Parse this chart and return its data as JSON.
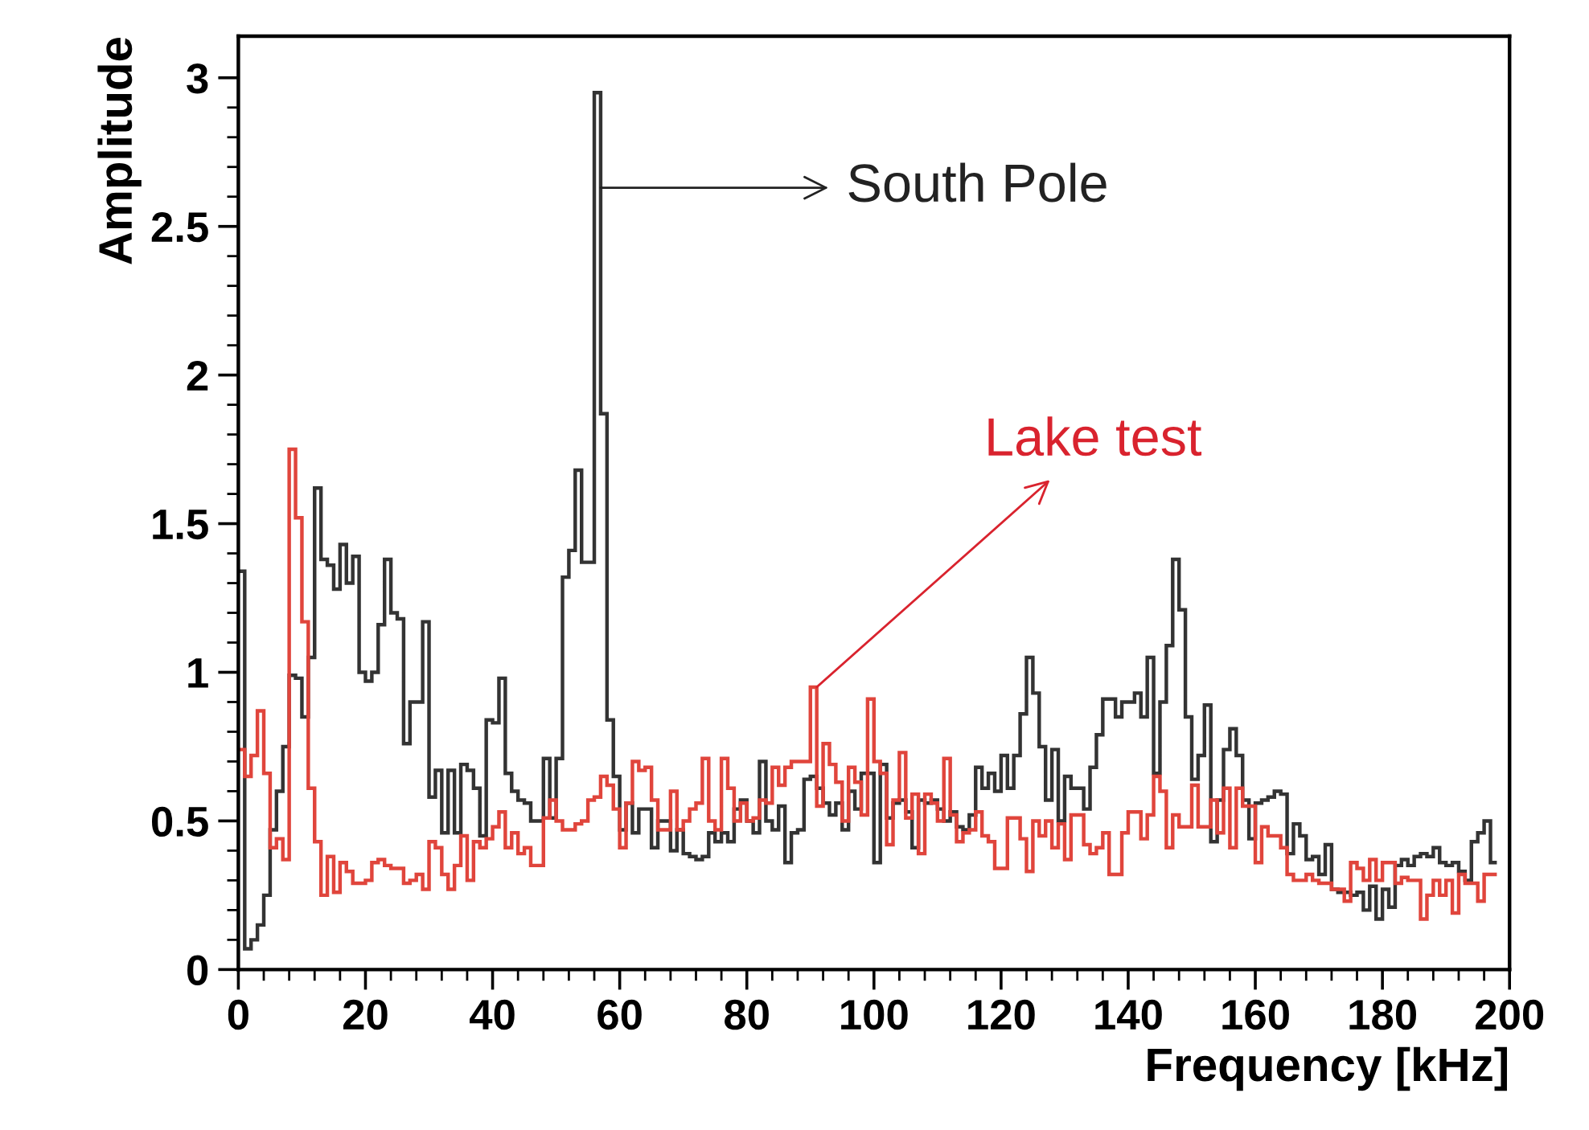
{
  "chart_data": {
    "type": "histogram",
    "xlabel": "Frequency [kHz]",
    "ylabel": "Amplitude",
    "xlim": [
      0,
      200
    ],
    "ylim": [
      0,
      3.14
    ],
    "xticks": [
      0,
      {
        "value": 4,
        "label": null
      },
      {
        "value": 8,
        "label": null
      },
      {
        "value": 12,
        "label": null
      },
      {
        "value": 16,
        "label": null
      },
      20,
      {
        "value": 24,
        "label": null
      },
      {
        "value": 28,
        "label": null
      },
      {
        "value": 32,
        "label": null
      },
      {
        "value": 36,
        "label": null
      },
      40,
      {
        "value": 44,
        "label": null
      },
      {
        "value": 48,
        "label": null
      },
      {
        "value": 52,
        "label": null
      },
      {
        "value": 56,
        "label": null
      },
      60,
      {
        "value": 64,
        "label": null
      },
      {
        "value": 68,
        "label": null
      },
      {
        "value": 72,
        "label": null
      },
      {
        "value": 76,
        "label": null
      },
      80,
      {
        "value": 84,
        "label": null
      },
      {
        "value": 88,
        "label": null
      },
      {
        "value": 92,
        "label": null
      },
      {
        "value": 96,
        "label": null
      },
      100,
      {
        "value": 104,
        "label": null
      },
      {
        "value": 108,
        "label": null
      },
      {
        "value": 112,
        "label": null
      },
      {
        "value": 116,
        "label": null
      },
      120,
      {
        "value": 124,
        "label": null
      },
      {
        "value": 128,
        "label": null
      },
      {
        "value": 132,
        "label": null
      },
      {
        "value": 136,
        "label": null
      },
      140,
      {
        "value": 144,
        "label": null
      },
      {
        "value": 148,
        "label": null
      },
      {
        "value": 152,
        "label": null
      },
      {
        "value": 156,
        "label": null
      },
      160,
      {
        "value": 164,
        "label": null
      },
      {
        "value": 168,
        "label": null
      },
      {
        "value": 172,
        "label": null
      },
      {
        "value": 176,
        "label": null
      },
      180,
      {
        "value": 184,
        "label": null
      },
      {
        "value": 188,
        "label": null
      },
      {
        "value": 192,
        "label": null
      },
      {
        "value": 196,
        "label": null
      },
      200
    ],
    "yticks": [
      0,
      {
        "value": 0.1,
        "label": null
      },
      {
        "value": 0.2,
        "label": null
      },
      {
        "value": 0.3,
        "label": null
      },
      {
        "value": 0.4,
        "label": null
      },
      0.5,
      {
        "value": 0.6,
        "label": null
      },
      {
        "value": 0.7,
        "label": null
      },
      {
        "value": 0.8,
        "label": null
      },
      {
        "value": 0.9,
        "label": null
      },
      1,
      {
        "value": 1.1,
        "label": null
      },
      {
        "value": 1.2,
        "label": null
      },
      {
        "value": 1.3,
        "label": null
      },
      {
        "value": 1.4,
        "label": null
      },
      1.5,
      {
        "value": 1.6,
        "label": null
      },
      {
        "value": 1.7,
        "label": null
      },
      {
        "value": 1.8,
        "label": null
      },
      {
        "value": 1.9,
        "label": null
      },
      2,
      {
        "value": 2.1,
        "label": null
      },
      {
        "value": 2.2,
        "label": null
      },
      {
        "value": 2.3,
        "label": null
      },
      {
        "value": 2.4,
        "label": null
      },
      2.5,
      {
        "value": 2.6,
        "label": null
      },
      {
        "value": 2.7,
        "label": null
      },
      {
        "value": 2.8,
        "label": null
      },
      {
        "value": 2.9,
        "label": null
      },
      3
    ],
    "grid": false,
    "legend": false,
    "bins": [
      0,
      1,
      2,
      3,
      4,
      5,
      6,
      7,
      8,
      9,
      10,
      11,
      12,
      13,
      14,
      15,
      16,
      17,
      18,
      19,
      20,
      21,
      22,
      23,
      24,
      25,
      26,
      27,
      28,
      29,
      30,
      31,
      32,
      33,
      34,
      35,
      36,
      37,
      38,
      39,
      40,
      41,
      42,
      43,
      44,
      45,
      46,
      47,
      48,
      49,
      50,
      51,
      52,
      53,
      54,
      55,
      56,
      57,
      58,
      59,
      60,
      61,
      62,
      63,
      64,
      65,
      66,
      67,
      68,
      69,
      70,
      71,
      72,
      73,
      74,
      75,
      76,
      77,
      78,
      79,
      80,
      81,
      82,
      83,
      84,
      85,
      86,
      87,
      88,
      89,
      90,
      91,
      92,
      93,
      94,
      95,
      96,
      97,
      98,
      99,
      100,
      101,
      102,
      103,
      104,
      105,
      106,
      107,
      108,
      109,
      110,
      111,
      112,
      113,
      114,
      115,
      116,
      117,
      118,
      119,
      120,
      121,
      122,
      123,
      124,
      125,
      126,
      127,
      128,
      129,
      130,
      131,
      132,
      133,
      134,
      135,
      136,
      137,
      138,
      139,
      140,
      141,
      142,
      143,
      144,
      145,
      146,
      147,
      148,
      149,
      150,
      151,
      152,
      153,
      154,
      155,
      156,
      157,
      158,
      159,
      160,
      161,
      162,
      163,
      164,
      165,
      166,
      167,
      168,
      169,
      170,
      171,
      172,
      173,
      174,
      175,
      176,
      177,
      178,
      179,
      180,
      181,
      182,
      183,
      184,
      185,
      186,
      187,
      188,
      189,
      190,
      191,
      192,
      193,
      194,
      195,
      196,
      197,
      198
    ],
    "series": [
      {
        "color": "#333333",
        "values": [
          1.34,
          0.07,
          0.1,
          0.15,
          0.25,
          0.47,
          0.6,
          0.75,
          0.99,
          0.98,
          0.85,
          1.05,
          1.62,
          1.38,
          1.36,
          1.28,
          1.43,
          1.3,
          1.39,
          1.0,
          0.97,
          1.0,
          1.16,
          1.38,
          1.2,
          1.18,
          0.76,
          0.9,
          0.9,
          1.17,
          0.58,
          0.67,
          0.46,
          0.67,
          0.46,
          0.69,
          0.67,
          0.61,
          0.45,
          0.84,
          0.83,
          0.98,
          0.66,
          0.6,
          0.57,
          0.56,
          0.5,
          0.5,
          0.71,
          0.51,
          0.71,
          1.32,
          1.41,
          1.68,
          1.37,
          1.37,
          2.95,
          1.87,
          0.84,
          0.65,
          0.47,
          0.56,
          0.46,
          0.54,
          0.54,
          0.41,
          0.5,
          0.5,
          0.4,
          0.47,
          0.39,
          0.38,
          0.37,
          0.38,
          0.46,
          0.43,
          0.46,
          0.43,
          0.54,
          0.57,
          0.5,
          0.46,
          0.7,
          0.5,
          0.47,
          0.55,
          0.36,
          0.46,
          0.47,
          0.64,
          0.65,
          0.61,
          0.56,
          0.52,
          0.56,
          0.47,
          0.6,
          0.54,
          0.66,
          0.66,
          0.36,
          0.69,
          0.51,
          0.56,
          0.57,
          0.53,
          0.41,
          0.57,
          0.56,
          0.57,
          0.54,
          0.5,
          0.53,
          0.48,
          0.47,
          0.52,
          0.68,
          0.61,
          0.66,
          0.6,
          0.72,
          0.61,
          0.72,
          0.86,
          1.05,
          0.93,
          0.75,
          0.57,
          0.74,
          0.5,
          0.65,
          0.61,
          0.61,
          0.54,
          0.68,
          0.79,
          0.91,
          0.91,
          0.85,
          0.9,
          0.9,
          0.93,
          0.85,
          1.05,
          0.66,
          0.9,
          1.09,
          1.38,
          1.21,
          0.85,
          0.64,
          0.72,
          0.89,
          0.43,
          0.57,
          0.74,
          0.81,
          0.72,
          0.57,
          0.44,
          0.56,
          0.57,
          0.58,
          0.6,
          0.59,
          0.39,
          0.49,
          0.45,
          0.37,
          0.38,
          0.32,
          0.42,
          0.27,
          0.26,
          0.26,
          0.25,
          0.26,
          0.2,
          0.28,
          0.17,
          0.27,
          0.21,
          0.35,
          0.37,
          0.35,
          0.38,
          0.39,
          0.38,
          0.41,
          0.36,
          0.35,
          0.36,
          0.33,
          0.3,
          0.43,
          0.46,
          0.5,
          0.36
        ]
      },
      {
        "color": "#e0453c",
        "values": [
          0.74,
          0.65,
          0.72,
          0.87,
          0.66,
          0.41,
          0.44,
          0.37,
          1.75,
          1.52,
          1.17,
          0.61,
          0.43,
          0.25,
          0.38,
          0.26,
          0.36,
          0.33,
          0.29,
          0.29,
          0.3,
          0.36,
          0.37,
          0.35,
          0.34,
          0.34,
          0.29,
          0.3,
          0.32,
          0.27,
          0.43,
          0.41,
          0.32,
          0.27,
          0.35,
          0.45,
          0.3,
          0.43,
          0.41,
          0.44,
          0.48,
          0.53,
          0.41,
          0.46,
          0.39,
          0.41,
          0.35,
          0.35,
          0.51,
          0.57,
          0.5,
          0.47,
          0.47,
          0.49,
          0.5,
          0.57,
          0.58,
          0.65,
          0.62,
          0.54,
          0.41,
          0.56,
          0.7,
          0.67,
          0.68,
          0.57,
          0.47,
          0.47,
          0.6,
          0.47,
          0.5,
          0.54,
          0.56,
          0.71,
          0.5,
          0.47,
          0.71,
          0.61,
          0.5,
          0.56,
          0.5,
          0.51,
          0.57,
          0.56,
          0.68,
          0.62,
          0.68,
          0.7,
          0.7,
          0.7,
          0.95,
          0.55,
          0.76,
          0.69,
          0.63,
          0.5,
          0.68,
          0.63,
          0.52,
          0.91,
          0.7,
          0.66,
          0.42,
          0.57,
          0.73,
          0.51,
          0.59,
          0.39,
          0.59,
          0.56,
          0.5,
          0.71,
          0.52,
          0.43,
          0.46,
          0.47,
          0.53,
          0.45,
          0.43,
          0.34,
          0.34,
          0.51,
          0.51,
          0.44,
          0.33,
          0.5,
          0.45,
          0.5,
          0.41,
          0.49,
          0.37,
          0.52,
          0.52,
          0.42,
          0.39,
          0.41,
          0.46,
          0.32,
          0.32,
          0.46,
          0.53,
          0.53,
          0.44,
          0.52,
          0.65,
          0.6,
          0.41,
          0.52,
          0.48,
          0.48,
          0.62,
          0.48,
          0.48,
          0.57,
          0.46,
          0.61,
          0.41,
          0.61,
          0.55,
          0.55,
          0.36,
          0.48,
          0.45,
          0.45,
          0.41,
          0.32,
          0.3,
          0.3,
          0.32,
          0.3,
          0.29,
          0.29,
          0.27,
          0.27,
          0.23,
          0.36,
          0.34,
          0.3,
          0.37,
          0.3,
          0.36,
          0.36,
          0.29,
          0.31,
          0.3,
          0.3,
          0.17,
          0.25,
          0.3,
          0.25,
          0.3,
          0.19,
          0.32,
          0.29,
          0.29,
          0.23,
          0.32,
          0.32
        ]
      }
    ],
    "annotations": [
      {
        "text": "South Pole",
        "x": 57,
        "y": 2.63
      },
      {
        "text": "Lake test",
        "x": 91,
        "y": 0.95
      }
    ]
  }
}
